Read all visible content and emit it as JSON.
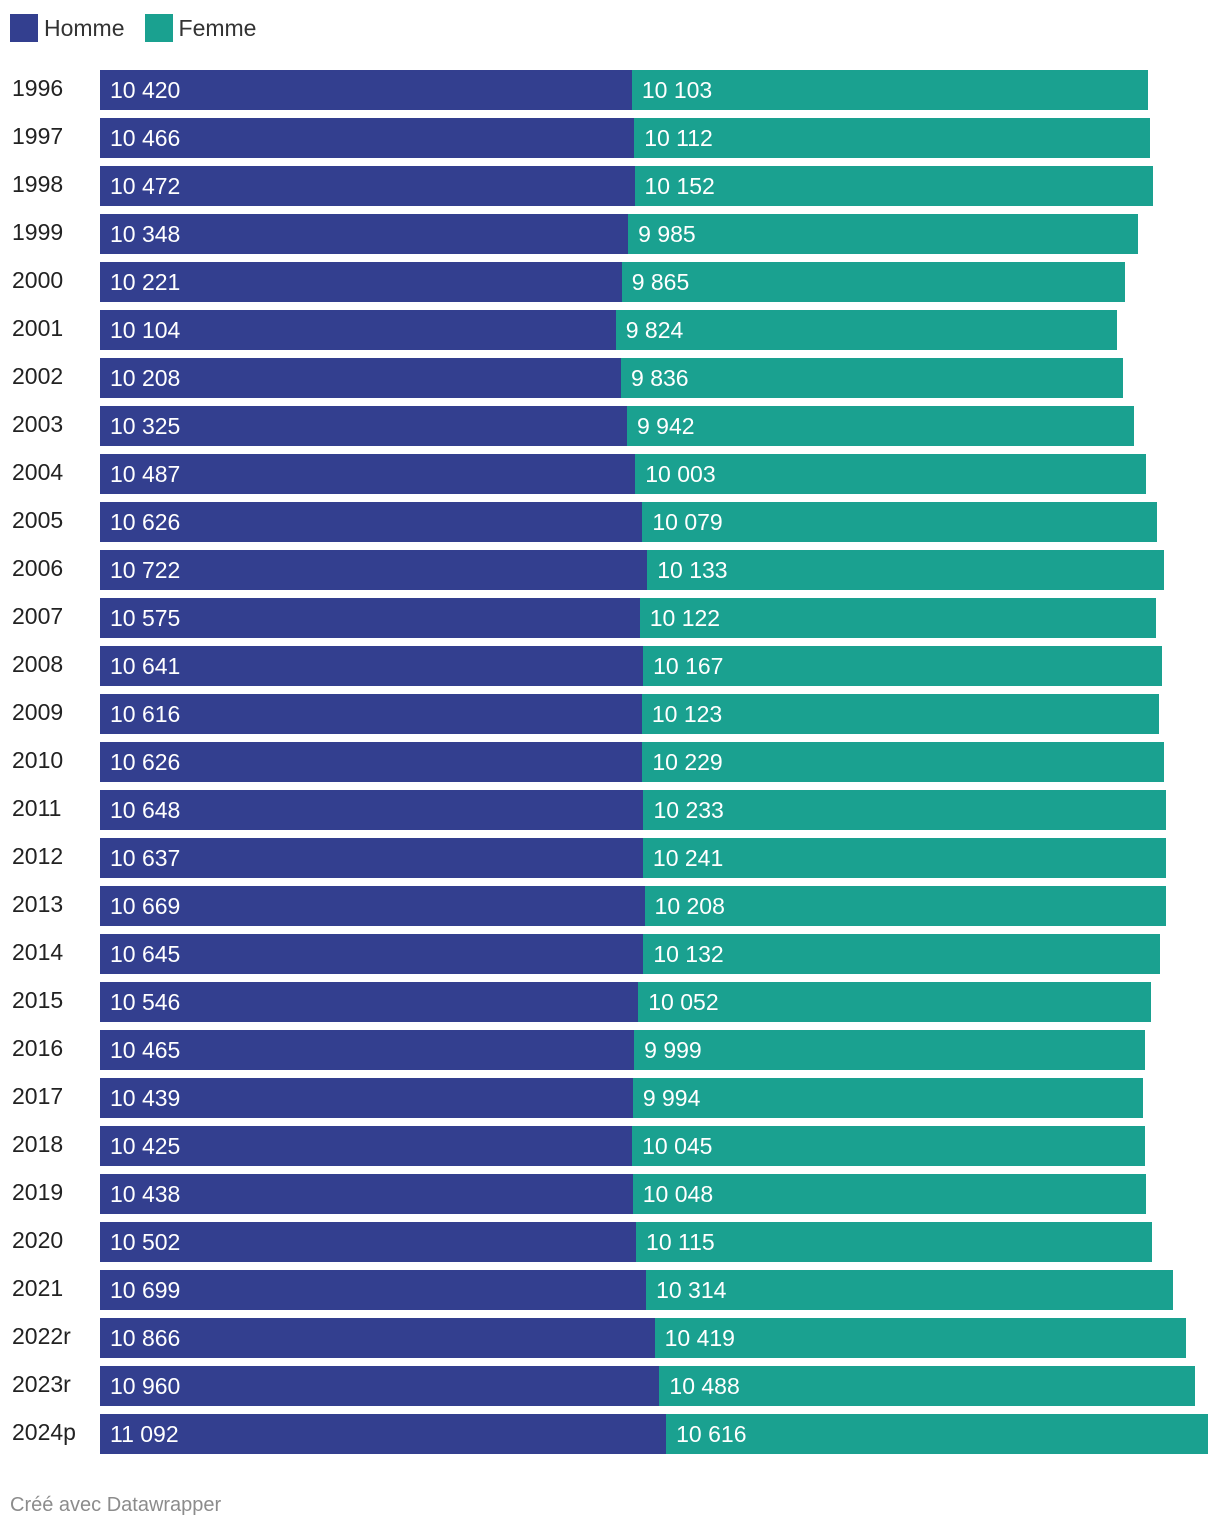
{
  "chart_data": {
    "type": "bar",
    "orientation": "horizontal",
    "stacked": true,
    "categories": [
      "1996",
      "1997",
      "1998",
      "1999",
      "2000",
      "2001",
      "2002",
      "2003",
      "2004",
      "2005",
      "2006",
      "2007",
      "2008",
      "2009",
      "2010",
      "2011",
      "2012",
      "2013",
      "2014",
      "2015",
      "2016",
      "2017",
      "2018",
      "2019",
      "2020",
      "2021",
      "2022r",
      "2023r",
      "2024p"
    ],
    "series": [
      {
        "name": "Homme",
        "color": "#333f8f",
        "values": [
          10420,
          10466,
          10472,
          10348,
          10221,
          10104,
          10208,
          10325,
          10487,
          10626,
          10722,
          10575,
          10641,
          10616,
          10626,
          10648,
          10637,
          10669,
          10645,
          10546,
          10465,
          10439,
          10425,
          10438,
          10502,
          10699,
          10866,
          10960,
          11092
        ],
        "labels": [
          "10 420",
          "10 466",
          "10 472",
          "10 348",
          "10 221",
          "10 104",
          "10 208",
          "10 325",
          "10 487",
          "10 626",
          "10 722",
          "10 575",
          "10 641",
          "10 616",
          "10 626",
          "10 648",
          "10 637",
          "10 669",
          "10 645",
          "10 546",
          "10 465",
          "10 439",
          "10 425",
          "10 438",
          "10 502",
          "10 699",
          "10 866",
          "10 960",
          "11 092"
        ]
      },
      {
        "name": "Femme",
        "color": "#1aa190",
        "values": [
          10103,
          10112,
          10152,
          9985,
          9865,
          9824,
          9836,
          9942,
          10003,
          10079,
          10133,
          10122,
          10167,
          10123,
          10229,
          10233,
          10241,
          10208,
          10132,
          10052,
          9999,
          9994,
          10045,
          10048,
          10115,
          10314,
          10419,
          10488,
          10616
        ],
        "labels": [
          "10 103",
          "10 112",
          "10 152",
          "9 985",
          "9 865",
          "9 824",
          "9 836",
          "9 942",
          "10 003",
          "10 079",
          "10 133",
          "10 122",
          "10 167",
          "10 123",
          "10 229",
          "10 233",
          "10 241",
          "10 208",
          "10 132",
          "10 052",
          "9 999",
          "9 994",
          "10 045",
          "10 048",
          "10 115",
          "10 314",
          "10 419",
          "10 488",
          "10 616"
        ]
      }
    ],
    "xlim": [
      0,
      21708
    ],
    "legend_position": "top-left",
    "grid": false
  },
  "footer": {
    "credit": "Créé avec Datawrapper"
  }
}
